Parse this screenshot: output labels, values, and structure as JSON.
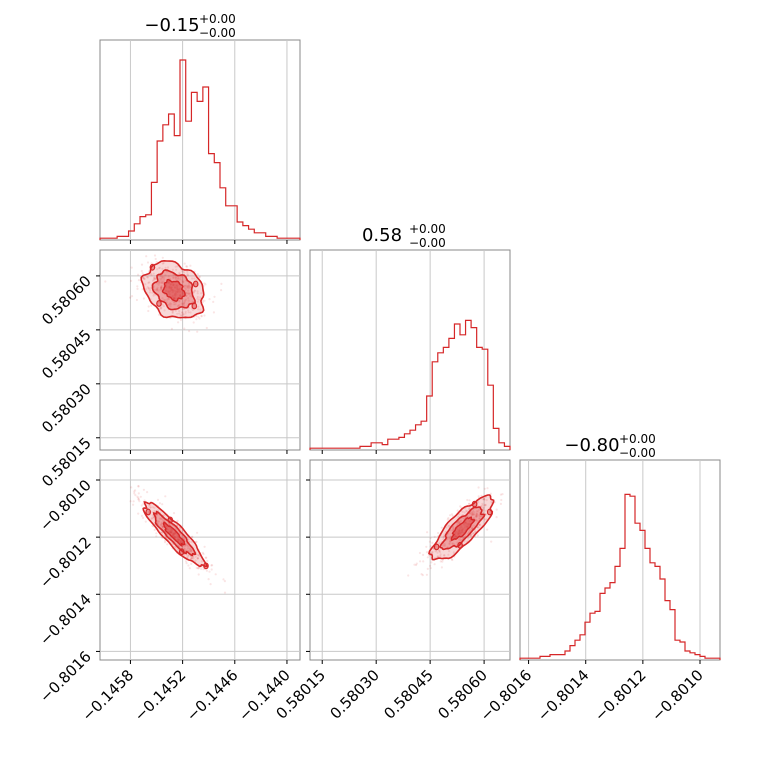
{
  "chart_data": {
    "type": "corner",
    "color": "#d62728",
    "grid": true,
    "parameters": [
      {
        "title_main": "−0.15",
        "title_sup": "+0.00",
        "title_sub": "−0.00",
        "range": [
          -0.14615,
          -0.14385
        ],
        "ticks": [
          -0.1458,
          -0.1452,
          -0.1446,
          -0.144
        ],
        "tick_labels": [
          "−0.1458",
          "−0.1452",
          "−0.1446",
          "−0.1440"
        ],
        "hist": [
          1,
          1,
          1,
          2,
          2,
          5,
          9,
          13,
          14,
          32,
          55,
          64,
          70,
          58,
          100,
          66,
          82,
          77,
          85,
          48,
          43,
          29,
          19,
          19,
          10,
          8,
          6,
          4,
          4,
          2,
          2,
          1,
          1,
          1,
          1
        ],
        "hist_max": 100
      },
      {
        "title_main": "0.58",
        "title_sup": "+0.00",
        "title_sub": "−0.00",
        "range": [
          0.580116,
          0.580672
        ],
        "ticks": [
          0.58015,
          0.5803,
          0.58045,
          0.5806
        ],
        "tick_labels": [
          "0.58015",
          "0.58030",
          "0.58045",
          "0.58060"
        ],
        "hist": [
          1,
          1,
          1,
          1,
          1,
          1,
          1,
          1,
          1,
          2,
          2,
          4,
          4,
          3,
          6,
          6,
          7,
          9,
          11,
          14,
          16,
          30,
          49,
          54,
          57,
          62,
          70,
          64,
          72,
          68,
          57,
          56,
          36,
          12,
          4,
          2
        ],
        "hist_max": 100
      },
      {
        "title_main": "−0.80",
        "title_sup": "+0.00",
        "title_sub": "−0.00",
        "range": [
          -0.80163,
          -0.80093
        ],
        "ticks": [
          -0.8016,
          -0.8014,
          -0.8012,
          -0.801
        ],
        "tick_labels": [
          "−0.8016",
          "−0.8014",
          "−0.8012",
          "−0.8010"
        ],
        "hist": [
          1,
          1,
          1,
          1,
          2,
          2,
          3,
          3,
          3,
          5,
          8,
          11,
          14,
          21,
          26,
          27,
          37,
          40,
          43,
          52,
          62,
          92,
          91,
          76,
          72,
          62,
          54,
          52,
          45,
          33,
          28,
          11,
          10,
          5,
          4,
          3,
          2,
          1,
          1,
          1
        ],
        "hist_max": 100
      }
    ],
    "pairs": [
      {
        "row": 1,
        "col": 0,
        "center": [
          -0.1453,
          0.58056
        ],
        "sd": [
          0.00017,
          3.85e-05
        ],
        "rho": -0.25
      },
      {
        "row": 2,
        "col": 0,
        "center": [
          -0.1453,
          -0.80119
        ],
        "sd": [
          0.00017,
          5.4e-05
        ],
        "rho": -0.9
      },
      {
        "row": 2,
        "col": 1,
        "center": [
          0.58054,
          -0.80117
        ],
        "sd": [
          4.2e-05,
          5.4e-05
        ],
        "rho": 0.8
      }
    ]
  }
}
